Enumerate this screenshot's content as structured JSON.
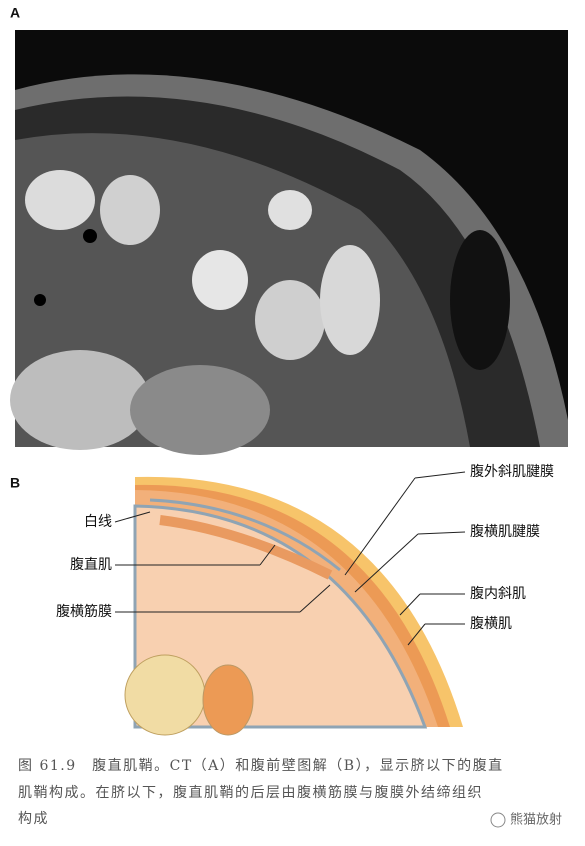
{
  "panels": [
    {
      "label": "A"
    },
    {
      "label": "B",
      "callouts": [
        "腹外斜肌腱膜",
        "腹横肌腱膜",
        "腹内斜肌",
        "腹横肌",
        "白线",
        "腹直肌",
        "腹横筋膜"
      ]
    }
  ],
  "caption": {
    "lines": [
      "图 61.9　腹直肌鞘。CT（A）和腹前壁图解（B），显示脐以下的腹直",
      "肌鞘构成。在脐以下，腹直肌鞘的后层由腹横筋膜与腹膜外结缔组织",
      "构成"
    ]
  },
  "watermark": "熊猫放射"
}
